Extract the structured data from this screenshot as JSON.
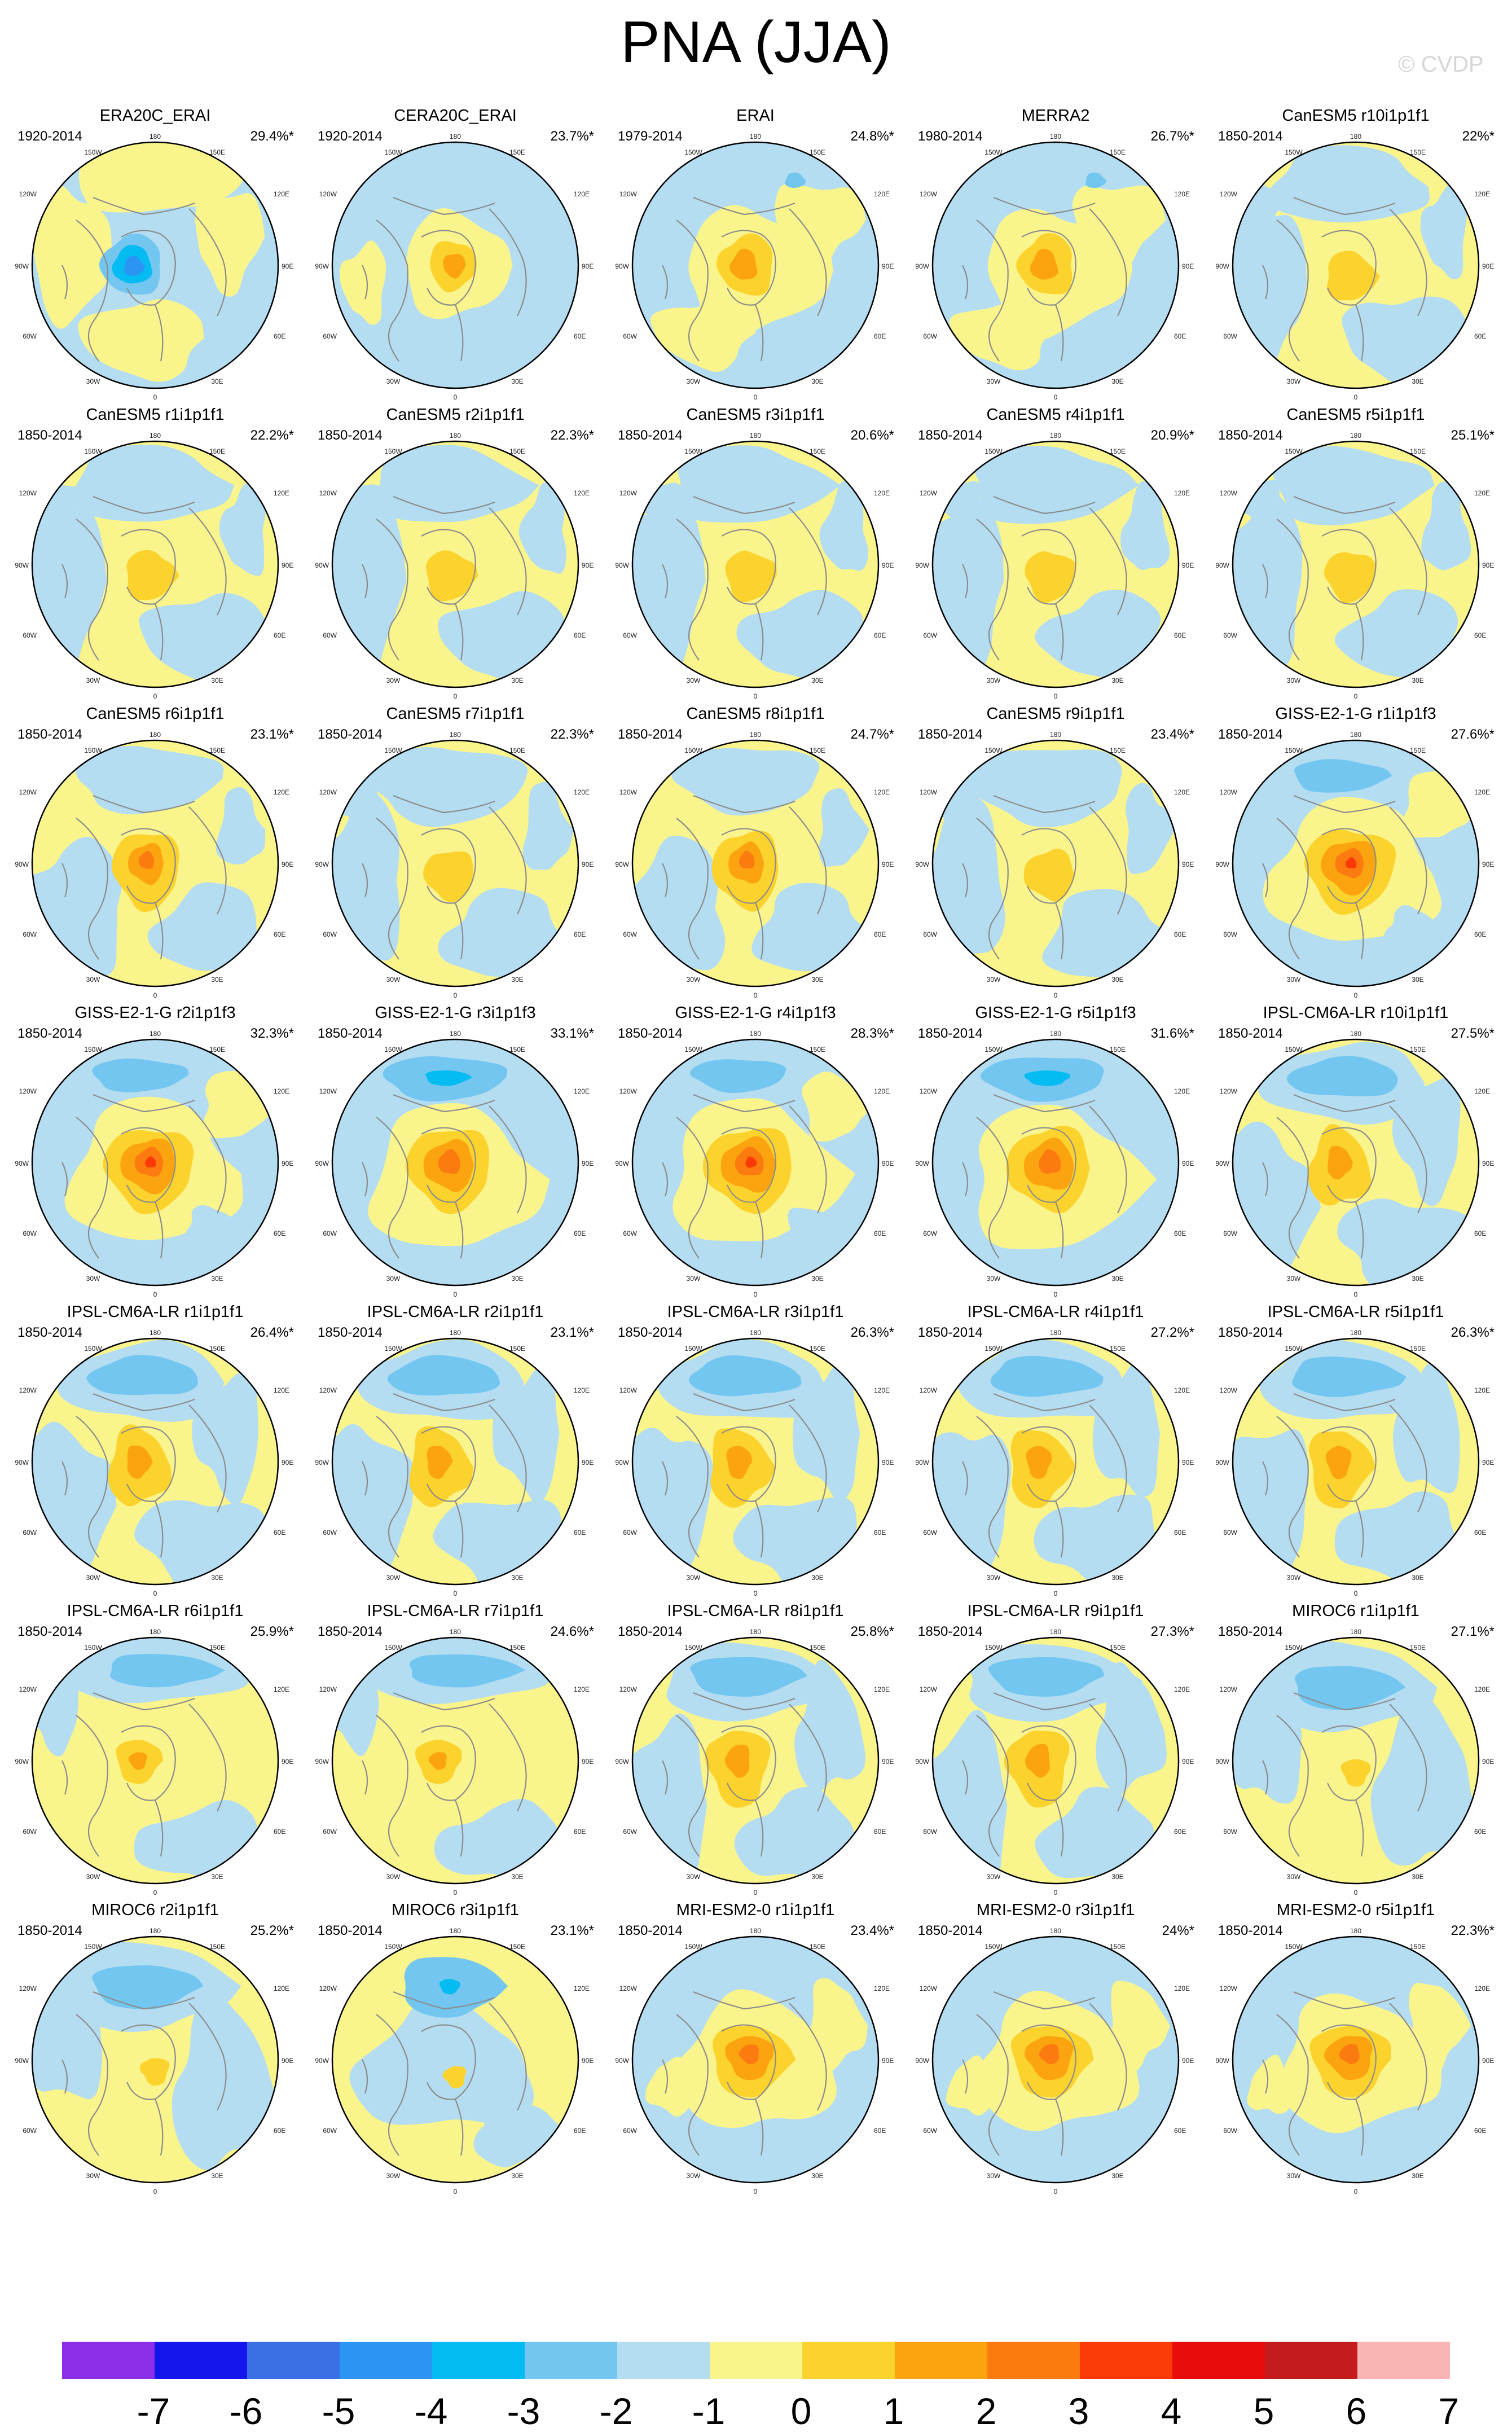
{
  "title": "PNA (JJA)",
  "copyright": "© CVDP",
  "map_labels": {
    "top": "180",
    "bottom": "0",
    "left": "90W",
    "right": "90E",
    "top_left_inner": "150W",
    "top_right_inner": "150E",
    "upper_left": "120W",
    "upper_right": "120E",
    "lower_left": "60W",
    "lower_right": "60E",
    "bottom_left_inner": "30W",
    "bottom_right_inner": "30E"
  },
  "colors": {
    "-7": "#8b2ee8",
    "-6": "#1515ee",
    "-5": "#3a6fe6",
    "-4": "#2c94f2",
    "-3": "#05bcf2",
    "-2": "#72c6f0",
    "-1": "#b4ddf2",
    "0": "#faf48c",
    "1": "#fcd22c",
    "2": "#fca310",
    "3": "#fc7b10",
    "4": "#fc3a08",
    "5": "#e80c0c",
    "6": "#c41c1c",
    "7": "#fbb4b4",
    "land_line": "#8c8c8c",
    "border": "#000000"
  },
  "colorbar": {
    "labels": [
      "-7",
      "-6",
      "-5",
      "-4",
      "-3",
      "-2",
      "-1",
      "0",
      "1",
      "2",
      "3",
      "4",
      "5",
      "6",
      "7"
    ],
    "colors": [
      "#8b2ee8",
      "#1515ee",
      "#3a6fe6",
      "#2c94f2",
      "#05bcf2",
      "#72c6f0",
      "#b4ddf2",
      "#faf48c",
      "#fcd22c",
      "#fca310",
      "#fc7b10",
      "#fc3a08",
      "#e80c0c",
      "#c41c1c",
      "#fbb4b4"
    ]
  },
  "panels": [
    {
      "name": "ERA20C_ERAI",
      "years": "1920-2014",
      "pct": "29.4%*",
      "pattern": "era20c"
    },
    {
      "name": "CERA20C_ERAI",
      "years": "1920-2014",
      "pct": "23.7%*",
      "pattern": "cera"
    },
    {
      "name": "ERAI",
      "years": "1979-2014",
      "pct": "24.8%*",
      "pattern": "erai"
    },
    {
      "name": "MERRA2",
      "years": "1980-2014",
      "pct": "26.7%*",
      "pattern": "erai"
    },
    {
      "name": "CanESM5 r10i1p1f1",
      "years": "1850-2014",
      "pct": "22%*",
      "pattern": "can"
    },
    {
      "name": "CanESM5 r1i1p1f1",
      "years": "1850-2014",
      "pct": "22.2%*",
      "pattern": "can"
    },
    {
      "name": "CanESM5 r2i1p1f1",
      "years": "1850-2014",
      "pct": "22.3%*",
      "pattern": "can"
    },
    {
      "name": "CanESM5 r3i1p1f1",
      "years": "1850-2014",
      "pct": "20.6%*",
      "pattern": "can"
    },
    {
      "name": "CanESM5 r4i1p1f1",
      "years": "1850-2014",
      "pct": "20.9%*",
      "pattern": "can"
    },
    {
      "name": "CanESM5 r5i1p1f1",
      "years": "1850-2014",
      "pct": "25.1%*",
      "pattern": "can"
    },
    {
      "name": "CanESM5 r6i1p1f1",
      "years": "1850-2014",
      "pct": "23.1%*",
      "pattern": "canstrong"
    },
    {
      "name": "CanESM5 r7i1p1f1",
      "years": "1850-2014",
      "pct": "22.3%*",
      "pattern": "can"
    },
    {
      "name": "CanESM5 r8i1p1f1",
      "years": "1850-2014",
      "pct": "24.7%*",
      "pattern": "canstrong"
    },
    {
      "name": "CanESM5 r9i1p1f1",
      "years": "1850-2014",
      "pct": "23.4%*",
      "pattern": "can"
    },
    {
      "name": "GISS-E2-1-G r1i1p1f3",
      "years": "1850-2014",
      "pct": "27.6%*",
      "pattern": "giss"
    },
    {
      "name": "GISS-E2-1-G r2i1p1f3",
      "years": "1850-2014",
      "pct": "32.3%*",
      "pattern": "giss"
    },
    {
      "name": "GISS-E2-1-G r3i1p1f3",
      "years": "1850-2014",
      "pct": "33.1%*",
      "pattern": "gissblue"
    },
    {
      "name": "GISS-E2-1-G r4i1p1f3",
      "years": "1850-2014",
      "pct": "28.3%*",
      "pattern": "giss"
    },
    {
      "name": "GISS-E2-1-G r5i1p1f3",
      "years": "1850-2014",
      "pct": "31.6%*",
      "pattern": "gissblue"
    },
    {
      "name": "IPSL-CM6A-LR r10i1p1f1",
      "years": "1850-2014",
      "pct": "27.5%*",
      "pattern": "ipsl"
    },
    {
      "name": "IPSL-CM6A-LR r1i1p1f1",
      "years": "1850-2014",
      "pct": "26.4%*",
      "pattern": "ipsl"
    },
    {
      "name": "IPSL-CM6A-LR r2i1p1f1",
      "years": "1850-2014",
      "pct": "23.1%*",
      "pattern": "ipsl"
    },
    {
      "name": "IPSL-CM6A-LR r3i1p1f1",
      "years": "1850-2014",
      "pct": "26.3%*",
      "pattern": "ipsl"
    },
    {
      "name": "IPSL-CM6A-LR r4i1p1f1",
      "years": "1850-2014",
      "pct": "27.2%*",
      "pattern": "ipsl"
    },
    {
      "name": "IPSL-CM6A-LR r5i1p1f1",
      "years": "1850-2014",
      "pct": "26.3%*",
      "pattern": "ipsl"
    },
    {
      "name": "IPSL-CM6A-LR r6i1p1f1",
      "years": "1850-2014",
      "pct": "25.9%*",
      "pattern": "ipslweak"
    },
    {
      "name": "IPSL-CM6A-LR r7i1p1f1",
      "years": "1850-2014",
      "pct": "24.6%*",
      "pattern": "ipslweak"
    },
    {
      "name": "IPSL-CM6A-LR r8i1p1f1",
      "years": "1850-2014",
      "pct": "25.8%*",
      "pattern": "ipsl"
    },
    {
      "name": "IPSL-CM6A-LR r9i1p1f1",
      "years": "1850-2014",
      "pct": "27.3%*",
      "pattern": "ipsl"
    },
    {
      "name": "MIROC6 r1i1p1f1",
      "years": "1850-2014",
      "pct": "27.1%*",
      "pattern": "miroc"
    },
    {
      "name": "MIROC6 r2i1p1f1",
      "years": "1850-2014",
      "pct": "25.2%*",
      "pattern": "miroc"
    },
    {
      "name": "MIROC6 r3i1p1f1",
      "years": "1850-2014",
      "pct": "23.1%*",
      "pattern": "miroc3"
    },
    {
      "name": "MRI-ESM2-0 r1i1p1f1",
      "years": "1850-2014",
      "pct": "23.4%*",
      "pattern": "mri"
    },
    {
      "name": "MRI-ESM2-0 r3i1p1f1",
      "years": "1850-2014",
      "pct": "24%*",
      "pattern": "mri"
    },
    {
      "name": "MRI-ESM2-0 r5i1p1f1",
      "years": "1850-2014",
      "pct": "22.3%*",
      "pattern": "mri"
    }
  ]
}
